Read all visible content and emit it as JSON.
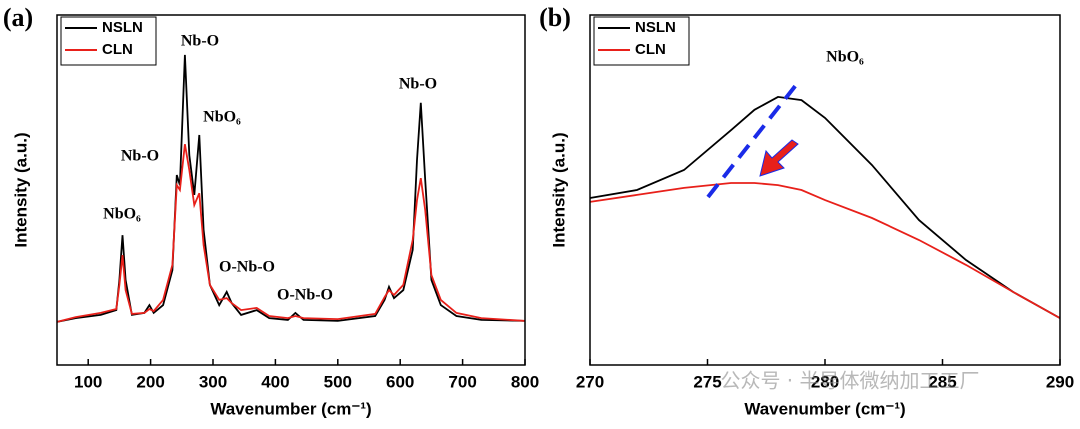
{
  "chart_data": [
    {
      "type": "line",
      "panel_label": "(a)",
      "x_label": "Wavenumber (cm⁻¹)",
      "y_label": "Intensity (a.u.)",
      "x": [
        50,
        80,
        120,
        145,
        150,
        155,
        160,
        170,
        190,
        198,
        205,
        220,
        235,
        242,
        247,
        255,
        262,
        270,
        278,
        285,
        295,
        310,
        322,
        330,
        345,
        370,
        390,
        420,
        432,
        445,
        500,
        560,
        575,
        582,
        590,
        605,
        620,
        627,
        633,
        640,
        650,
        665,
        690,
        730,
        800
      ],
      "series": [
        {
          "name": "NSLN",
          "color": "#000000",
          "values": [
            12.3,
            13.4,
            14.3,
            15.7,
            24.3,
            37.1,
            24.3,
            14.3,
            14.9,
            17.1,
            14.9,
            17.1,
            27.1,
            54.3,
            51.4,
            88.6,
            60,
            48.6,
            65.7,
            38.6,
            22.9,
            17.1,
            20.9,
            17.7,
            14.3,
            15.7,
            13.4,
            12.9,
            14.9,
            12.9,
            12.6,
            14,
            18.6,
            22.3,
            19.1,
            21.4,
            32.9,
            58.6,
            74.9,
            52.9,
            24.3,
            17.1,
            14,
            12.9,
            12.6
          ]
        },
        {
          "name": "CLN",
          "color": "#e8201a",
          "values": [
            12.3,
            13.7,
            14.9,
            16,
            22.9,
            31.4,
            21.4,
            14.6,
            14.9,
            16,
            15.4,
            18.6,
            28.6,
            51.4,
            50,
            63.1,
            55.7,
            45.7,
            49.1,
            34.3,
            22.9,
            18.6,
            19.1,
            17.7,
            15.7,
            16.3,
            14,
            13.4,
            14,
            13.4,
            13.1,
            14.6,
            19.4,
            21.4,
            20,
            22.9,
            35.7,
            47.1,
            53.4,
            44.3,
            25.7,
            18.6,
            14.9,
            13.4,
            12.6
          ]
        }
      ],
      "xlim": [
        50,
        800
      ],
      "xticks": [
        100,
        200,
        300,
        400,
        500,
        600,
        700,
        800
      ],
      "ylim": [
        0,
        100
      ],
      "annotations": [
        "NbO₆",
        "Nb-O",
        "Nb-O",
        "NbO₆",
        "O-Nb-O",
        "O-Nb-O",
        "Nb-O"
      ]
    },
    {
      "type": "line",
      "panel_label": "(b)",
      "x_label": "Wavenumber (cm⁻¹)",
      "y_label": "Intensity (a.u.)",
      "x": [
        270,
        272,
        274,
        276,
        277,
        278,
        279,
        280,
        282,
        284,
        286,
        288,
        290
      ],
      "series": [
        {
          "name": "NSLN",
          "color": "#000000",
          "values": [
            47.7,
            50,
            55.7,
            67.1,
            72.9,
            76.6,
            75.7,
            70.6,
            57.1,
            41.4,
            30,
            20.9,
            13.4
          ]
        },
        {
          "name": "CLN",
          "color": "#e8201a",
          "values": [
            46.6,
            48.6,
            50.6,
            52,
            52,
            51.4,
            50,
            47.1,
            42,
            35.7,
            28.6,
            20.9,
            13.4
          ]
        }
      ],
      "xlim": [
        270,
        290
      ],
      "xticks": [
        270,
        275,
        280,
        285,
        290
      ],
      "ylim": [
        0,
        100
      ],
      "annotations": [
        "NbO₆"
      ],
      "watermark": "公众号 · 半导体微纳加工工厂"
    }
  ]
}
